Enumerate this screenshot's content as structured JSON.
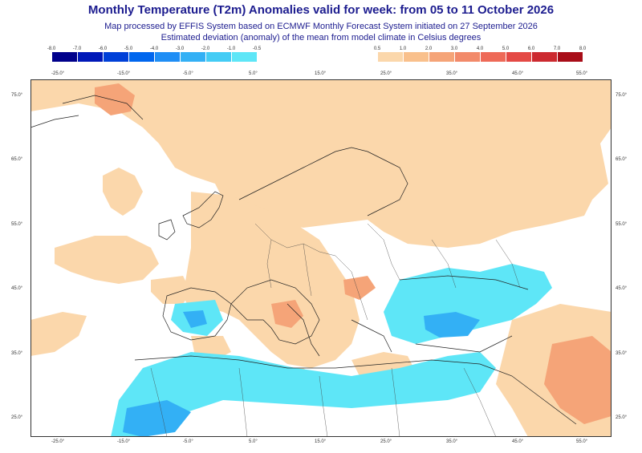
{
  "title": "Monthly Temperature (T2m) Anomalies valid for week: from 05 to 11 October 2026",
  "subtitle_1": "Map processed by EFFIS System based on ECMWF Monthly Forecast System initiated on 27 September 2026",
  "subtitle_2": "Estimated deviation (anomaly) of the mean from model climate in Celsius degrees",
  "legend_cold": {
    "ticks": [
      "-8.0",
      "-7.0",
      "-6.0",
      "-5.0",
      "-4.0",
      "-3.0",
      "-2.0",
      "-1.0",
      "-0.5"
    ],
    "colors": [
      "#00008b",
      "#0018b8",
      "#0040d8",
      "#0066ee",
      "#1f8ef5",
      "#33b0f5",
      "#44ccf5",
      "#5ee6f7"
    ]
  },
  "legend_warm": {
    "ticks": [
      "0.5",
      "1.0",
      "2.0",
      "3.0",
      "4.0",
      "5.0",
      "6.0",
      "7.0",
      "8.0"
    ],
    "colors": [
      "#fbd7ab",
      "#f9c08c",
      "#f5a478",
      "#f28a6a",
      "#ee6a58",
      "#e44a45",
      "#cc2a30",
      "#a80d18"
    ]
  },
  "lon_labels_top": [
    "-25.0°",
    "-15.0°",
    "-5.0°",
    "5.0°",
    "15.0°",
    "25.0°",
    "35.0°",
    "45.0°",
    "55.0°"
  ],
  "lon_labels_bottom": [
    "-25.0°",
    "-15.0°",
    "-5.0°",
    "5.0°",
    "15.0°",
    "25.0°",
    "35.0°",
    "45.0°",
    "55.0°"
  ],
  "lat_labels_left": [
    "75.0°",
    "65.0°",
    "55.0°",
    "45.0°",
    "35.0°",
    "25.0°"
  ],
  "lat_labels_right": [
    "75.0°",
    "65.0°",
    "55.0°",
    "45.0°",
    "35.0°",
    "25.0°"
  ]
}
